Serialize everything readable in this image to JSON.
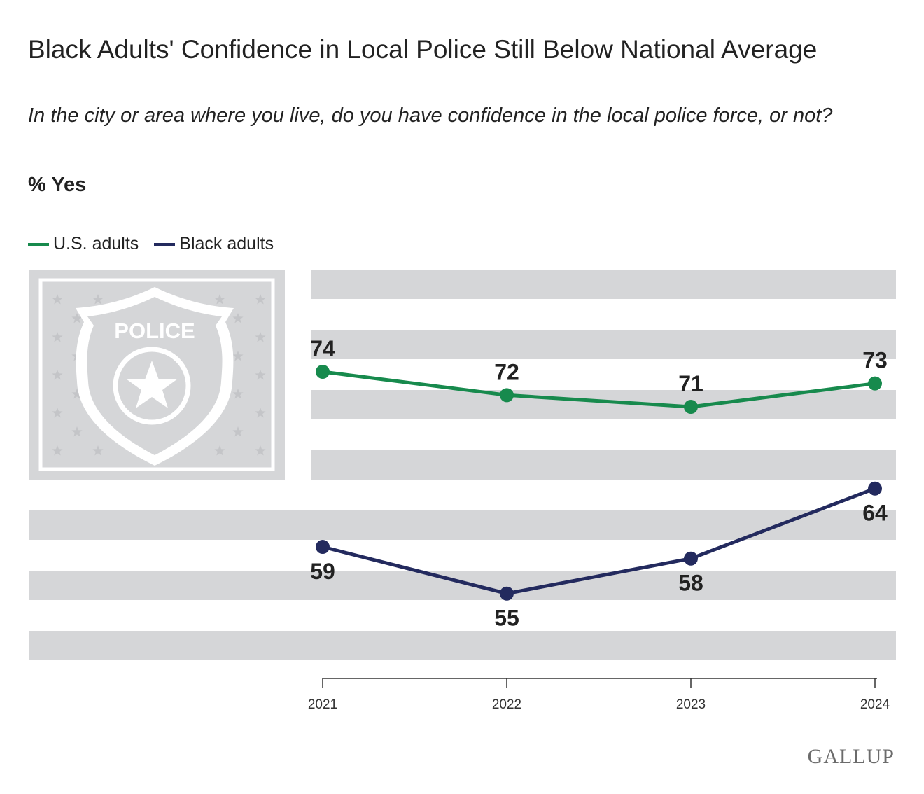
{
  "title": "Black Adults' Confidence in Local Police Still Below National Average",
  "subtitle": "In the city or area where you live, do you have confidence in the local police force, or not?",
  "unit_label": "% Yes",
  "badge_text": "POLICE",
  "logo": "GALLUP",
  "colors": {
    "us": "#178a4d",
    "black": "#232a5e",
    "stripe": "#d5d6d8",
    "canton": "#d5d6d8"
  },
  "chart_data": {
    "type": "line",
    "title": "Black Adults' Confidence in Local Police Still Below National Average",
    "xlabel": "",
    "ylabel": "% Yes",
    "categories": [
      "2021",
      "2022",
      "2023",
      "2024"
    ],
    "ylim": [
      50,
      80
    ],
    "series": [
      {
        "name": "U.S. adults",
        "values": [
          74,
          72,
          71,
          73
        ],
        "label_position": "above"
      },
      {
        "name": "Black adults",
        "values": [
          59,
          55,
          58,
          64
        ],
        "label_position": "below"
      }
    ],
    "legend": "top-left",
    "grid": false
  }
}
